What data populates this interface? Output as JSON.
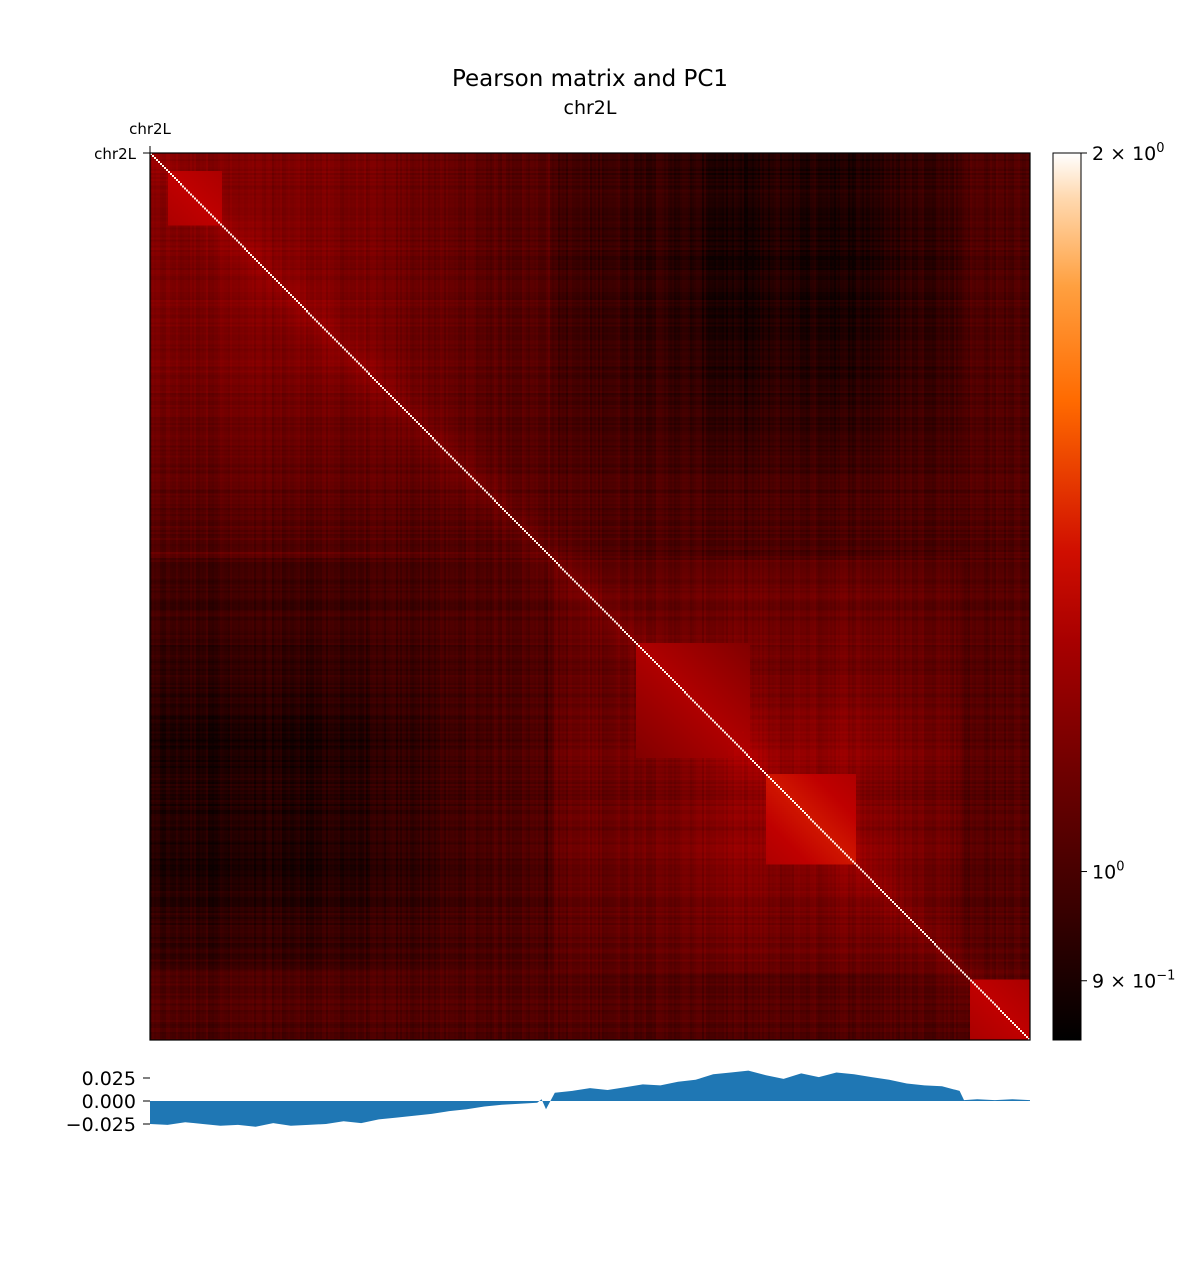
{
  "chart_data": [
    {
      "type": "heatmap",
      "title": "Pearson matrix and PC1",
      "subtitle": "chr2L",
      "top_label": "chr2L",
      "left_label": "chr2L",
      "scale": "log",
      "colormap": "gist_heat",
      "colorbar": {
        "vmin": 0.85,
        "vmax": 2.0,
        "ticks": [
          {
            "value": 2.0,
            "label": "2 × 10",
            "exp": "0"
          },
          {
            "value": 1.0,
            "label": "10",
            "exp": "0"
          },
          {
            "value": 0.9,
            "label": "9 × 10",
            "exp": "−1"
          }
        ]
      },
      "diagonal_value": 2.0,
      "bins": 440,
      "domains": [
        {
          "start": 0.02,
          "end": 0.08,
          "value": 1.3
        },
        {
          "start": 0.55,
          "end": 0.68,
          "value": 1.25
        },
        {
          "start": 0.7,
          "end": 0.8,
          "value": 1.35
        },
        {
          "start": 0.93,
          "end": 1.0,
          "value": 1.3
        }
      ]
    },
    {
      "type": "area",
      "ylabel": "",
      "yticks": [
        "0.025",
        "0.000",
        "−0.025"
      ],
      "ylim": [
        -0.033,
        0.04
      ],
      "color": "#1f77b4",
      "x": [
        0,
        0.02,
        0.04,
        0.06,
        0.08,
        0.1,
        0.12,
        0.14,
        0.16,
        0.18,
        0.2,
        0.22,
        0.24,
        0.26,
        0.28,
        0.3,
        0.32,
        0.34,
        0.36,
        0.38,
        0.4,
        0.42,
        0.44,
        0.445,
        0.45,
        0.46,
        0.48,
        0.5,
        0.52,
        0.54,
        0.56,
        0.58,
        0.6,
        0.62,
        0.64,
        0.66,
        0.68,
        0.7,
        0.72,
        0.74,
        0.76,
        0.78,
        0.8,
        0.82,
        0.84,
        0.86,
        0.88,
        0.9,
        0.92,
        0.925,
        0.94,
        0.96,
        0.98,
        1.0
      ],
      "values": [
        -0.025,
        -0.026,
        -0.023,
        -0.025,
        -0.027,
        -0.026,
        -0.028,
        -0.024,
        -0.027,
        -0.026,
        -0.025,
        -0.022,
        -0.024,
        -0.02,
        -0.018,
        -0.016,
        -0.014,
        -0.011,
        -0.009,
        -0.006,
        -0.004,
        -0.003,
        -0.002,
        0.002,
        -0.009,
        0.009,
        0.011,
        0.014,
        0.012,
        0.015,
        0.018,
        0.017,
        0.021,
        0.023,
        0.029,
        0.031,
        0.033,
        0.028,
        0.024,
        0.03,
        0.026,
        0.031,
        0.029,
        0.026,
        0.023,
        0.019,
        0.017,
        0.016,
        0.011,
        0.001,
        0.002,
        0.001,
        0.002,
        0.001
      ]
    }
  ]
}
